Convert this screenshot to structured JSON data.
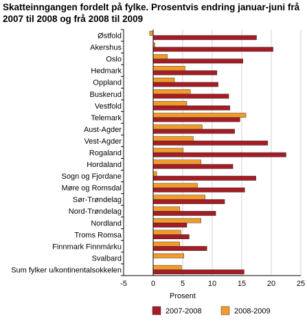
{
  "chart_data": {
    "type": "bar",
    "orientation": "horizontal",
    "title": "Skatteinngangen fordelt på fylke. Prosentvis endring januar-juni frå 2007 til 2008 og frå 2008 til 2009",
    "xlabel": "Prosent",
    "ylabel": "",
    "xlim": [
      -5,
      25
    ],
    "xticks": [
      "-5",
      "0",
      "5",
      "10",
      "15",
      "20",
      "25"
    ],
    "grid": "vertical",
    "legend": "bottom",
    "categories": [
      "Østfold",
      "Akershus",
      "Oslo",
      "Hedmark",
      "Oppland",
      "Buskerud",
      "Vestfold",
      "Telemark",
      "Aust-Agder",
      "Vest-Agder",
      "Rogaland",
      "Hordaland",
      "Sogn og Fjordane",
      "Møre og Romsdal",
      "Sør-Trøndelag",
      "Nord-Trøndelag",
      "Nordland",
      "Troms Romsa",
      "Finnmark Finnmárku",
      "Svalbard",
      "Sum fylker u/kontinentalsokkelen"
    ],
    "series": [
      {
        "name": "2007-2008",
        "color": "#a41c24",
        "values": [
          17.5,
          20.3,
          15.2,
          10.8,
          11.0,
          12.8,
          13.0,
          14.7,
          13.8,
          19.4,
          22.5,
          13.5,
          17.4,
          15.5,
          12.1,
          10.6,
          5.7,
          6.1,
          9.1,
          null,
          15.4
        ]
      },
      {
        "name": "2008-2009",
        "color": "#f39b2a",
        "values": [
          -0.6,
          0.3,
          2.4,
          5.4,
          3.6,
          6.3,
          5.7,
          15.7,
          8.3,
          6.8,
          5.1,
          8.1,
          0.6,
          7.5,
          8.8,
          4.5,
          8.1,
          4.7,
          4.5,
          5.2,
          4.8
        ]
      }
    ]
  }
}
